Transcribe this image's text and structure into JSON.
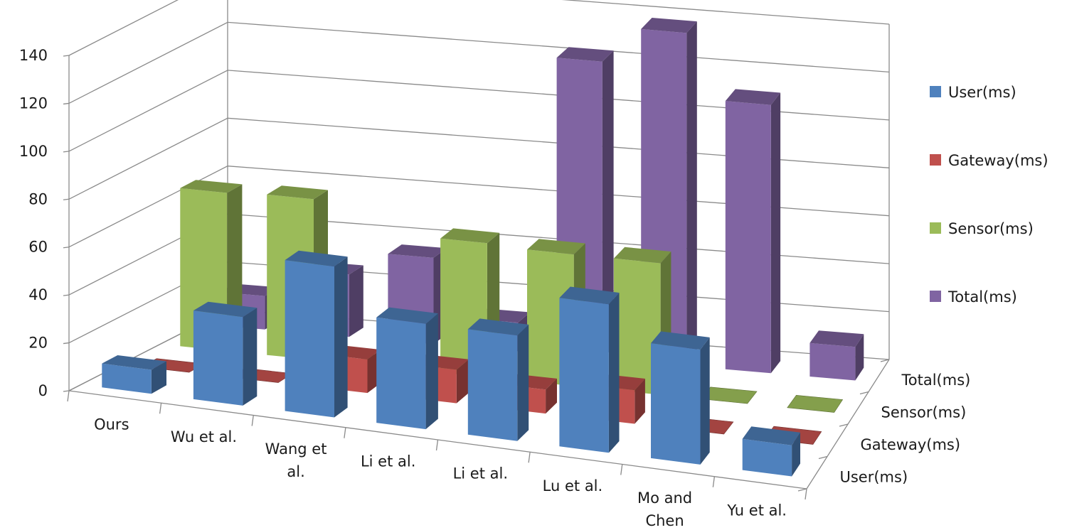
{
  "chart_data": {
    "type": "bar",
    "subtype": "3d-column",
    "title": "",
    "categories": [
      "Ours",
      "Wu et al.",
      "Wang et al.",
      "Li et al.",
      "Li et al.",
      "Lu et al.",
      "Mo and Chen",
      "Yu et al."
    ],
    "category_lines": [
      [
        "Ours"
      ],
      [
        "Wu et al."
      ],
      [
        "Wang et",
        "al."
      ],
      [
        "Li et al."
      ],
      [
        "Li et al."
      ],
      [
        "Lu et al."
      ],
      [
        "Mo and",
        "Chen"
      ],
      [
        "Yu et al."
      ]
    ],
    "series": [
      {
        "name": "User(ms)",
        "color": "#4f81bd",
        "values": [
          10,
          37,
          63,
          44,
          44,
          62,
          48,
          13
        ]
      },
      {
        "name": "Gateway(ms)",
        "color": "#c0504d",
        "values": [
          0,
          0,
          14,
          14,
          10,
          14,
          0,
          0
        ]
      },
      {
        "name": "Sensor(ms)",
        "color": "#9bbb59",
        "values": [
          66,
          67,
          0,
          56,
          55,
          55,
          0,
          0
        ]
      },
      {
        "name": "Total(ms)",
        "color": "#8064a2",
        "values": [
          14,
          26,
          36,
          12,
          124,
          139,
          112,
          14
        ]
      }
    ],
    "depth_labels": [
      "User(ms)",
      "Gateway(ms)",
      "Sensor(ms)",
      "Total(ms)"
    ],
    "y_ticks": [
      0,
      20,
      40,
      60,
      80,
      100,
      120,
      140
    ],
    "ylim": [
      0,
      140
    ],
    "grid": true,
    "legend_position": "right",
    "xlabel": "",
    "ylabel": ""
  }
}
